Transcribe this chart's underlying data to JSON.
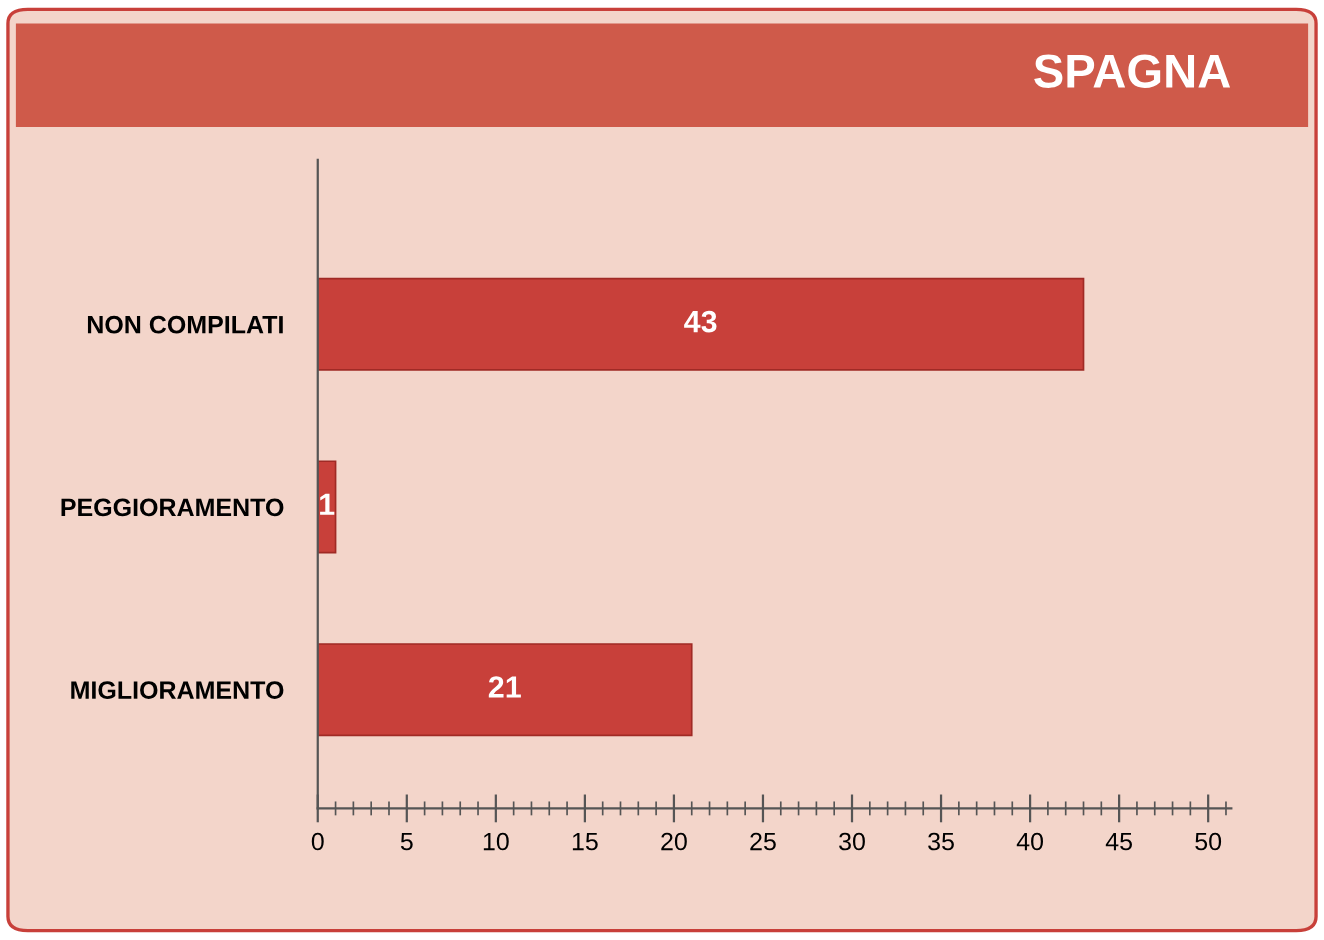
{
  "chart_data": {
    "type": "bar",
    "orientation": "horizontal",
    "title": "SPAGNA",
    "categories": [
      "NON COMPILATI",
      "PEGGIORAMENTO",
      "MIGLIORAMENTO"
    ],
    "values": [
      43,
      1,
      21
    ],
    "color": "#c8403a",
    "xlim": [
      0,
      51.3
    ],
    "xticks": [
      0,
      5,
      10,
      15,
      20,
      25,
      30,
      35,
      40,
      45,
      50
    ],
    "data_labels": true
  }
}
